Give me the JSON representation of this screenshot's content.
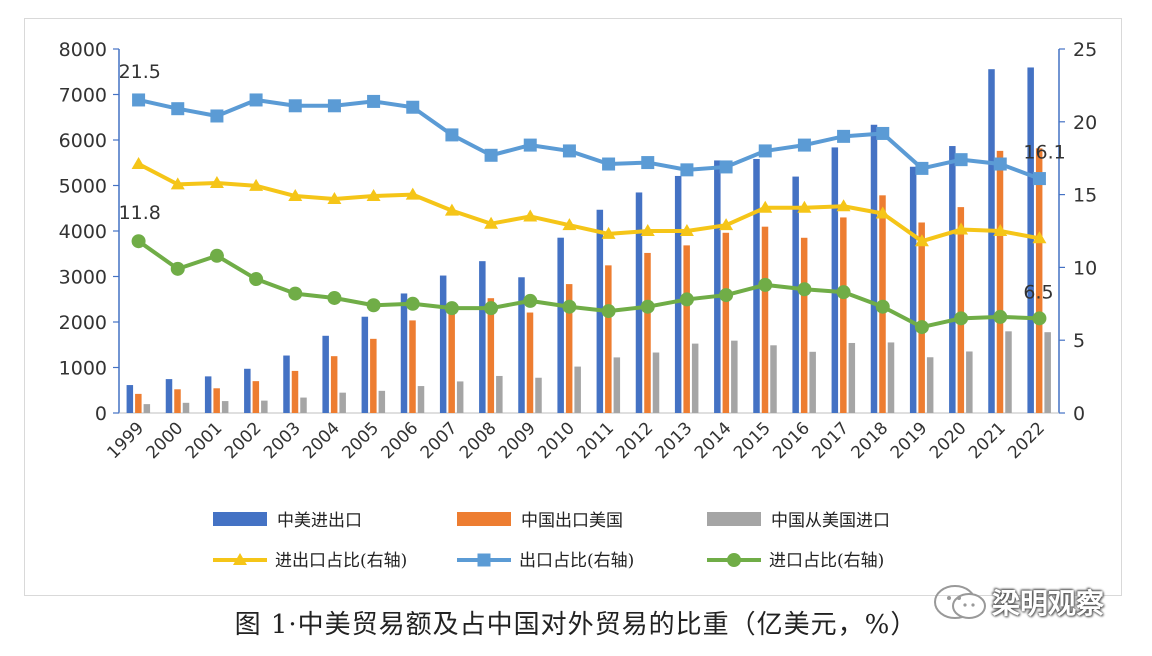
{
  "caption": "图 1·中美贸易额及占中国对外贸易的比重（亿美元，%）",
  "watermark": "梁明观察",
  "colors": {
    "total": "#4472c4",
    "export": "#ed7d31",
    "import": "#a5a5a5",
    "export_import_share": "#f5c518",
    "export_share": "#5b9bd5",
    "import_share": "#70ad47"
  },
  "chart_data": {
    "type": "bar",
    "categories": [
      "1999",
      "2000",
      "2001",
      "2002",
      "2003",
      "2004",
      "2005",
      "2006",
      "2007",
      "2008",
      "2009",
      "2010",
      "2011",
      "2012",
      "2013",
      "2014",
      "2015",
      "2016",
      "2017",
      "2018",
      "2019",
      "2020",
      "2021",
      "2022"
    ],
    "left_axis": {
      "ylim": [
        0,
        8000
      ],
      "ticks": [
        "0",
        "1000",
        "2000",
        "3000",
        "4000",
        "5000",
        "6000",
        "7000",
        "8000"
      ]
    },
    "right_axis": {
      "ylim": [
        0,
        25
      ],
      "ticks": [
        "0",
        "5",
        "10",
        "15",
        "20",
        "25"
      ]
    },
    "bar_series": [
      {
        "name": "中美进出口",
        "values": [
          614,
          745,
          805,
          972,
          1263,
          1697,
          2116,
          2627,
          3021,
          3337,
          2983,
          3853,
          4467,
          4847,
          5210,
          5551,
          5583,
          5196,
          5837,
          6335,
          5412,
          5867,
          7556,
          7594
        ]
      },
      {
        "name": "中国出口美国",
        "values": [
          420,
          521,
          543,
          700,
          925,
          1249,
          1630,
          2035,
          2327,
          2523,
          2208,
          2833,
          3245,
          3518,
          3684,
          3961,
          4095,
          3851,
          4298,
          4784,
          4187,
          4525,
          5761,
          5817
        ]
      },
      {
        "name": "中国从美国进口",
        "values": [
          195,
          224,
          262,
          272,
          339,
          447,
          487,
          592,
          694,
          814,
          775,
          1020,
          1222,
          1329,
          1525,
          1590,
          1488,
          1345,
          1539,
          1551,
          1225,
          1352,
          1795,
          1776
        ]
      }
    ],
    "line_series": [
      {
        "name": "进出口占比(右轴)",
        "values": [
          17.1,
          15.7,
          15.8,
          15.6,
          14.9,
          14.7,
          14.9,
          15.0,
          13.9,
          13.0,
          13.5,
          12.9,
          12.3,
          12.5,
          12.5,
          12.9,
          14.1,
          14.1,
          14.2,
          13.7,
          11.8,
          12.6,
          12.5,
          12.0
        ]
      },
      {
        "name": "出口占比(右轴)",
        "values": [
          21.5,
          20.9,
          20.4,
          21.5,
          21.1,
          21.1,
          21.4,
          21.0,
          19.1,
          17.7,
          18.4,
          18.0,
          17.1,
          17.2,
          16.7,
          16.9,
          18.0,
          18.4,
          19.0,
          19.2,
          16.8,
          17.4,
          17.1,
          16.1
        ]
      },
      {
        "name": "进口占比(右轴)",
        "values": [
          11.8,
          9.9,
          10.8,
          9.2,
          8.2,
          7.9,
          7.4,
          7.5,
          7.2,
          7.2,
          7.7,
          7.3,
          7.0,
          7.3,
          7.8,
          8.1,
          8.8,
          8.5,
          8.3,
          7.3,
          5.9,
          6.5,
          6.6,
          6.5
        ]
      }
    ],
    "annotations": [
      {
        "series": 1,
        "index": 0,
        "text": "21.5"
      },
      {
        "series": 2,
        "index": 0,
        "text": "11.8"
      },
      {
        "series": 1,
        "index": 23,
        "text": "16.1"
      },
      {
        "series": 2,
        "index": 23,
        "text": "6.5"
      }
    ],
    "legend_placement": "bottom",
    "grid": false
  }
}
